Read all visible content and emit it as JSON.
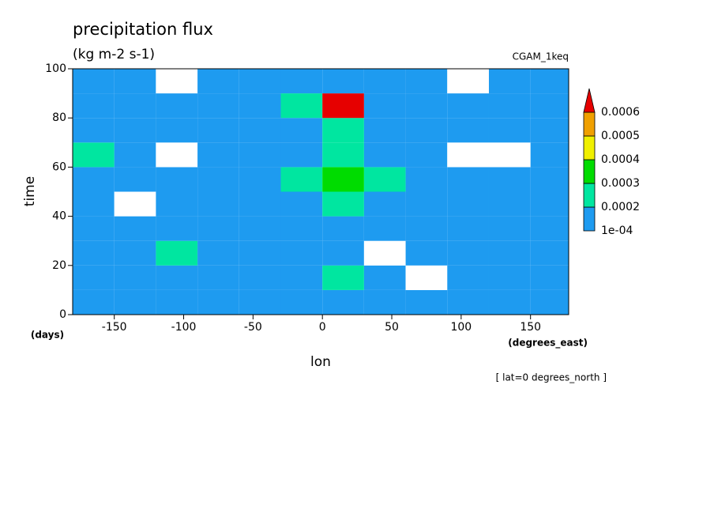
{
  "chart_data": {
    "type": "contour",
    "title": "precipitation flux",
    "subtitle": "(kg m-2 s-1)",
    "dataset_label": "CGAM_1keq",
    "y_label": "time",
    "y_units": "(days)",
    "x_label": "lon",
    "x_units": "(degrees_east)",
    "annotation": "[ lat=0 degrees_north ]",
    "x_edges": [
      -180,
      -150,
      -120,
      -90,
      -60,
      -30,
      0,
      30,
      60,
      90,
      120,
      150,
      180
    ],
    "y_edges": [
      0,
      10,
      20,
      30,
      40,
      50,
      60,
      70,
      80,
      90,
      100
    ],
    "values": [
      [
        0.00015,
        0.00014,
        0.00013,
        0.00016,
        0.00015,
        0.00014,
        0.00015,
        0.00013,
        0.00016,
        0.00014,
        0.00015,
        0.00017
      ],
      [
        0.00012,
        0.00015,
        0.00014,
        0.00013,
        0.00015,
        0.00016,
        0.00021,
        0.00012,
        9e-05,
        0.00014,
        0.00015,
        0.00013
      ],
      [
        0.00014,
        0.00016,
        0.00021,
        0.00015,
        0.00013,
        0.00014,
        0.00015,
        9e-05,
        0.00013,
        0.00015,
        0.00016,
        0.00014
      ],
      [
        0.00015,
        0.00013,
        0.00014,
        0.00016,
        0.00015,
        0.00014,
        0.00017,
        0.00015,
        0.00016,
        0.00013,
        0.00012,
        0.00015
      ],
      [
        0.00011,
        9e-05,
        0.00013,
        0.00015,
        0.00014,
        0.00015,
        0.00022,
        0.00016,
        0.00014,
        0.00015,
        0.00013,
        0.00012
      ],
      [
        0.00014,
        0.00015,
        0.00016,
        0.00017,
        0.00018,
        0.00022,
        0.00035,
        0.0002,
        0.00015,
        0.00013,
        0.00014,
        0.00015
      ],
      [
        0.00021,
        0.00014,
        9e-05,
        0.00013,
        0.00016,
        0.00018,
        0.00026,
        0.00014,
        0.00012,
        9e-05,
        8e-05,
        0.00015
      ],
      [
        0.00016,
        0.00013,
        0.00015,
        0.00014,
        0.00017,
        0.00019,
        0.00024,
        0.00015,
        0.00016,
        0.00014,
        0.00013,
        0.00018
      ],
      [
        0.00012,
        0.00015,
        0.00014,
        0.00013,
        0.00016,
        0.00022,
        0.00065,
        0.00018,
        0.00013,
        0.00012,
        0.00015,
        0.00011
      ],
      [
        0.00015,
        0.00014,
        9e-05,
        0.00012,
        0.00015,
        0.00016,
        0.00017,
        0.00013,
        0.00014,
        9e-05,
        0.00012,
        0.00016
      ]
    ],
    "levels": [
      {
        "value": 0.0001,
        "label": "1e-04"
      },
      0.0002,
      0.0003,
      0.0004,
      0.0005,
      0.0006
    ],
    "colors": [
      "#1e9bf0",
      "#00e6a0",
      "#00dc00",
      "#f0f000",
      "#f0a000",
      "#e60000"
    ],
    "xlim": [
      -180,
      177.5
    ],
    "ylim": [
      0,
      100
    ],
    "xticks": [
      -150,
      -100,
      -50,
      0,
      50,
      100,
      150
    ],
    "yticks": [
      0,
      20,
      40,
      60,
      80,
      100
    ]
  }
}
